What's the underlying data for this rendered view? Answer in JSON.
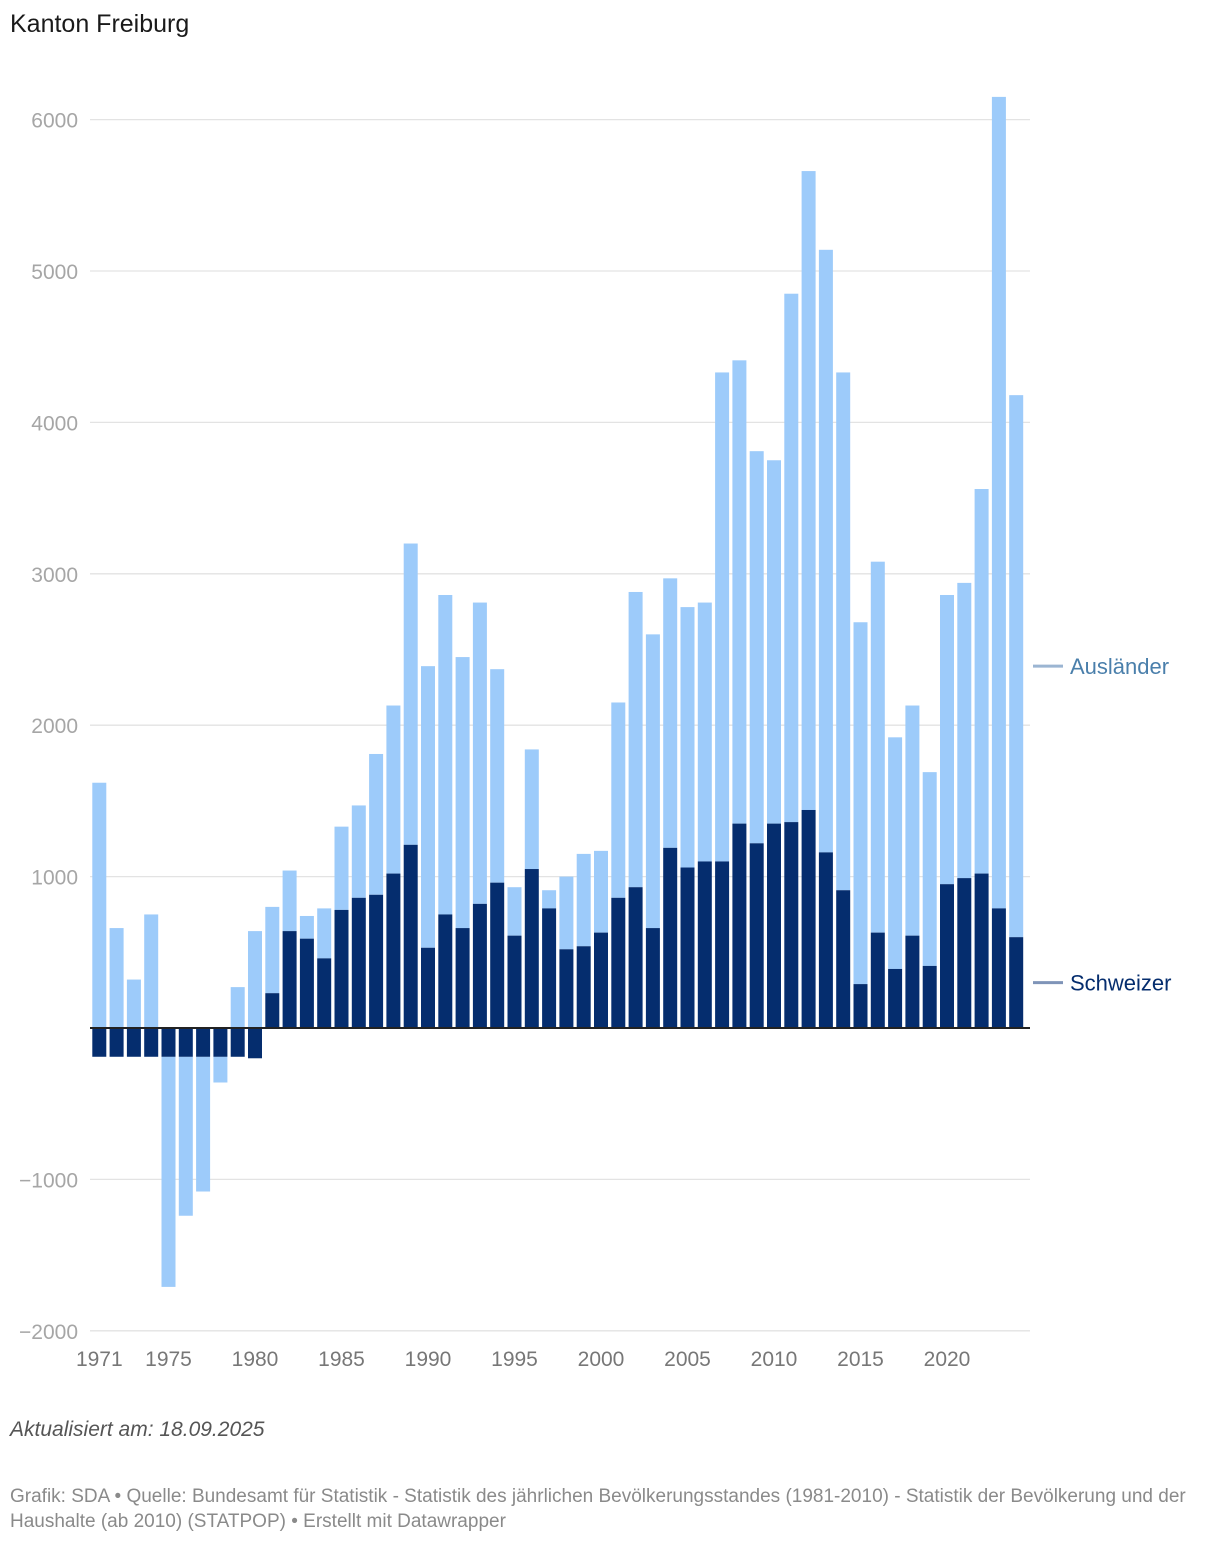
{
  "title": "Kanton Freiburg",
  "updated": "Aktualisiert am: 18.09.2025",
  "footer": "Grafik: SDA • Quelle: Bundesamt für Statistik - Statistik des jährlichen Bevölkerungsstandes (1981-2010) - Statistik der Bevölkerung und der Haushalte (ab 2010) (STATPOP) • Erstellt mit Datawrapper",
  "colors": {
    "auslaender": "#9dcbfa",
    "schweizer": "#052d6e",
    "auslaender_label": "#4a7fab",
    "auslaender_leader": "#9bb5d2",
    "schweizer_leader": "#7f94b8",
    "gridline": "#e3e3e3",
    "zero_line": "#222222"
  },
  "chart_data": {
    "type": "bar",
    "stacked": true,
    "ylim": [
      -2000,
      6000
    ],
    "yticks": [
      -2000,
      -1000,
      1000,
      2000,
      3000,
      4000,
      5000,
      6000
    ],
    "ytick_labels": [
      "−2000",
      "−1000",
      "1000",
      "2000",
      "3000",
      "4000",
      "5000",
      "6000"
    ],
    "xticks": [
      1971,
      1975,
      1980,
      1985,
      1990,
      1995,
      2000,
      2005,
      2010,
      2015,
      2020
    ],
    "grid": true,
    "legend": "direct labels on the right",
    "x": [
      1971,
      1972,
      1973,
      1974,
      1975,
      1976,
      1977,
      1978,
      1979,
      1980,
      1981,
      1982,
      1983,
      1984,
      1985,
      1986,
      1987,
      1988,
      1989,
      1990,
      1991,
      1992,
      1993,
      1994,
      1995,
      1996,
      1997,
      1998,
      1999,
      2000,
      2001,
      2002,
      2003,
      2004,
      2005,
      2006,
      2007,
      2008,
      2009,
      2010,
      2011,
      2012,
      2013,
      2014,
      2015,
      2016,
      2017,
      2018,
      2019,
      2020,
      2021,
      2022,
      2023,
      2024
    ],
    "series": [
      {
        "name": "Schweizer",
        "values": [
          -190,
          -190,
          -190,
          -190,
          -190,
          -190,
          -190,
          -190,
          -190,
          -200,
          230,
          640,
          590,
          460,
          780,
          860,
          880,
          1020,
          1210,
          530,
          750,
          660,
          820,
          960,
          610,
          1050,
          790,
          520,
          540,
          630,
          860,
          930,
          660,
          1190,
          1060,
          1100,
          1100,
          1350,
          1220,
          1350,
          1360,
          1440,
          1160,
          910,
          290,
          630,
          390,
          610,
          410,
          950,
          990,
          1020,
          790,
          600
        ]
      },
      {
        "name": "Ausländer",
        "values": [
          1620,
          660,
          320,
          750,
          -1520,
          -1050,
          -890,
          -170,
          270,
          640,
          570,
          400,
          150,
          330,
          550,
          610,
          930,
          1110,
          1990,
          1860,
          2110,
          1790,
          1990,
          1410,
          320,
          790,
          120,
          480,
          610,
          540,
          1290,
          1950,
          1940,
          1780,
          1720,
          1710,
          3230,
          3060,
          2590,
          2400,
          3490,
          4220,
          3980,
          3420,
          2390,
          2450,
          1530,
          1520,
          1280,
          1910,
          1950,
          2540,
          5360,
          3580
        ]
      }
    ]
  }
}
